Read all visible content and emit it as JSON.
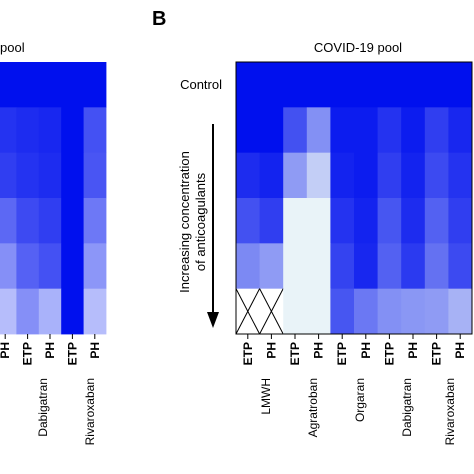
{
  "chart_data": [
    {
      "type": "heatmap",
      "panel_label": "",
      "title": "pool",
      "columns": [
        "PH",
        "ETP",
        "PH",
        "ETP",
        "PH"
      ],
      "groups": [
        "Dabigatran",
        "Rivaroxaban"
      ],
      "row_label_top": "",
      "values": [
        [
          1.0,
          1.0,
          1.0,
          1.0,
          1.0
        ],
        [
          0.85,
          0.88,
          0.9,
          1.0,
          0.72
        ],
        [
          0.8,
          0.85,
          0.88,
          1.0,
          0.7
        ],
        [
          0.62,
          0.75,
          0.8,
          1.0,
          0.55
        ],
        [
          0.45,
          0.65,
          0.72,
          1.0,
          0.42
        ],
        [
          0.25,
          0.45,
          0.3,
          1.0,
          0.25
        ]
      ],
      "colorscale": [
        "#f2f7ff",
        "#0010ee"
      ]
    },
    {
      "type": "heatmap",
      "panel_label": "B",
      "title": "COVID-19 pool",
      "row_label_top": "Control",
      "y_annotation": [
        "Increasing concentration",
        "of anticoagulants"
      ],
      "columns": [
        "ETP",
        "PH",
        "ETP",
        "PH",
        "ETP",
        "PH",
        "ETP",
        "PH",
        "ETP",
        "PH"
      ],
      "groups": [
        "LMWH",
        "Agratroban",
        "Orgaran",
        "Dabigatran",
        "Rivaroxaban"
      ],
      "values": [
        [
          1.0,
          1.0,
          1.0,
          1.0,
          1.0,
          1.0,
          1.0,
          1.0,
          1.0,
          1.0
        ],
        [
          1.0,
          1.0,
          0.72,
          0.45,
          0.95,
          0.95,
          0.85,
          0.95,
          0.8,
          0.9
        ],
        [
          0.88,
          0.92,
          0.4,
          0.18,
          0.92,
          0.95,
          0.8,
          0.92,
          0.75,
          0.85
        ],
        [
          0.72,
          0.8,
          0.02,
          0.02,
          0.85,
          0.92,
          0.7,
          0.88,
          0.65,
          0.8
        ],
        [
          0.48,
          0.4,
          0.02,
          0.02,
          0.78,
          0.9,
          0.65,
          0.82,
          0.58,
          0.75
        ],
        [
          null,
          null,
          0.02,
          0.02,
          0.7,
          0.55,
          0.45,
          0.42,
          0.4,
          0.3
        ]
      ],
      "missing_marker": "X",
      "colorscale": [
        "#eef8f8",
        "#0010ee"
      ]
    }
  ]
}
